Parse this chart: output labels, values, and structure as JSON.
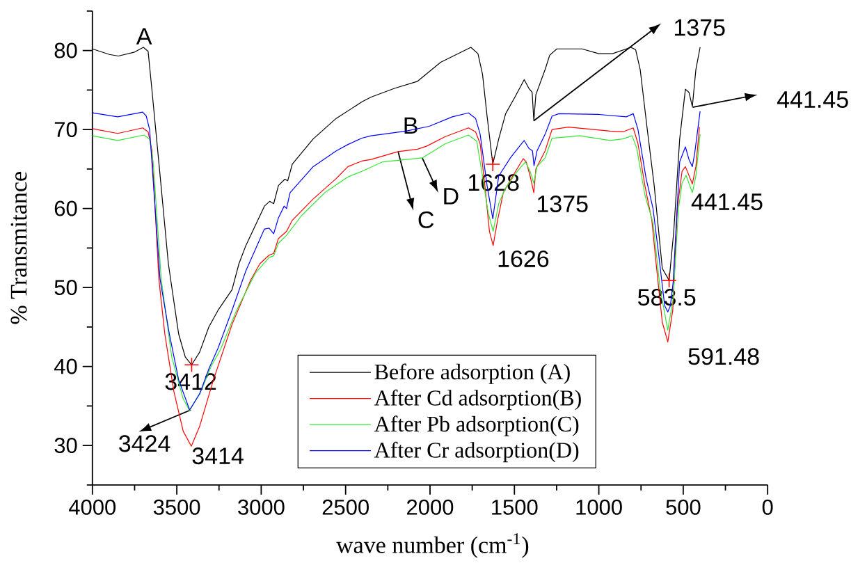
{
  "chart_data": {
    "type": "line",
    "xlabel": "wave number (cm$^{-1}$)",
    "ylabel": "% Transmitance",
    "xlim": [
      4000,
      0
    ],
    "ylim": [
      25,
      85
    ],
    "xticks": [
      4000,
      {
        "value": 3750,
        "label": null
      },
      3500,
      {
        "value": 3250,
        "label": null
      },
      3000,
      {
        "value": 2750,
        "label": null
      },
      2500,
      {
        "value": 2250,
        "label": null
      },
      2000,
      {
        "value": 1750,
        "label": null
      },
      1500,
      {
        "value": 1250,
        "label": null
      },
      1000,
      {
        "value": 750,
        "label": null
      },
      500,
      {
        "value": 250,
        "label": null
      },
      0
    ],
    "yticks": [
      {
        "value": 25,
        "label": null
      },
      30,
      {
        "value": 35,
        "label": null
      },
      40,
      {
        "value": 45,
        "label": null
      },
      50,
      {
        "value": 55,
        "label": null
      },
      60,
      {
        "value": 65,
        "label": null
      },
      70,
      {
        "value": 75,
        "label": null
      },
      80,
      {
        "value": 85,
        "label": null
      }
    ],
    "legend": "bottom",
    "marker": "none",
    "line_style": "solid",
    "series": [
      {
        "name": "Before adsorption (A)",
        "color": "#000000",
        "x": [
          4000,
          3900,
          3846,
          3750,
          3698,
          3670,
          3650,
          3600,
          3550,
          3489,
          3450,
          3412,
          3365,
          3310,
          3256,
          3173,
          3132,
          3091,
          2981,
          2950,
          2926,
          2898,
          2860,
          2843,
          2816,
          2692,
          2556,
          2403,
          2349,
          2211,
          2074,
          1937,
          1758,
          1716,
          1689,
          1662,
          1628,
          1593,
          1552,
          1497,
          1442,
          1414,
          1395,
          1385,
          1373,
          1318,
          1291,
          1249,
          1100,
          1000,
          919,
          810,
          782,
          755,
          713,
          672,
          624,
          583.5,
          556,
          521,
          487,
          466,
          446,
          425,
          400
        ],
        "values": [
          80.2,
          79.5,
          79.3,
          79.8,
          80.4,
          79.9,
          75.6,
          64.4,
          53.0,
          44.1,
          41.2,
          40.2,
          41.8,
          45.0,
          47.1,
          49.7,
          53.0,
          55.3,
          60.3,
          60.9,
          60.6,
          62.9,
          63.7,
          63.5,
          65.6,
          68.8,
          71.4,
          73.5,
          74.1,
          75.2,
          76.1,
          78.5,
          80.4,
          79.6,
          77.0,
          71.7,
          65.6,
          68.8,
          72.0,
          74.1,
          76.3,
          75.2,
          74.7,
          71.1,
          74.4,
          77.6,
          79.4,
          80.2,
          80.2,
          79.6,
          79.6,
          80.4,
          80.1,
          77.6,
          70.0,
          62.9,
          52.4,
          50.9,
          57.1,
          68.8,
          75.1,
          74.7,
          72.9,
          77.6,
          80.4
        ]
      },
      {
        "name": "After Cd adsorption(B)",
        "color": "#ff0000",
        "x": [
          4000,
          3850,
          3702,
          3670,
          3647,
          3606,
          3571,
          3517,
          3462,
          3414,
          3365,
          3283,
          3173,
          3063,
          3008,
          2953,
          2926,
          2898,
          2850,
          2816,
          2692,
          2555,
          2486,
          2404,
          2349,
          2190,
          2074,
          2019,
          1909,
          1772,
          1730,
          1703,
          1675,
          1648,
          1626,
          1600,
          1566,
          1510,
          1448,
          1430,
          1407,
          1385,
          1373,
          1318,
          1277,
          1180,
          933,
          858,
          796,
          768,
          727,
          686,
          659,
          624,
          591.48,
          562,
          535,
          507,
          487,
          446,
          425,
          404
        ],
        "values": [
          70.1,
          69.5,
          70.2,
          69.7,
          67.3,
          51.0,
          44.1,
          36.8,
          31.8,
          29.9,
          32.4,
          38.3,
          45.3,
          50.9,
          53.0,
          54.1,
          54.3,
          56.2,
          57.1,
          58.5,
          61.2,
          63.8,
          65.3,
          66.0,
          66.2,
          67.2,
          67.5,
          67.9,
          69.1,
          70.2,
          69.7,
          68.2,
          62.9,
          57.1,
          55.3,
          58.5,
          62.0,
          64.1,
          66.3,
          65.9,
          64.1,
          62.0,
          65.0,
          67.3,
          70.0,
          70.3,
          69.8,
          69.7,
          70.2,
          68.2,
          62.9,
          58.5,
          52.7,
          45.6,
          43.1,
          47.1,
          60.0,
          64.7,
          65.3,
          63.1,
          65.3,
          70.3
        ]
      },
      {
        "name": "After Pb adsorption(C)",
        "color": "#33e633",
        "x": [
          4000,
          3850,
          3695,
          3661,
          3640,
          3592,
          3530,
          3462,
          3424,
          3352,
          3297,
          3242,
          3146,
          3035,
          2953,
          2926,
          2898,
          2850,
          2761,
          2623,
          2486,
          2404,
          2280,
          2046,
          1909,
          1772,
          1723,
          1689,
          1655,
          1626,
          1593,
          1552,
          1483,
          1435,
          1407,
          1385,
          1366,
          1318,
          1277,
          1112,
          933,
          858,
          803,
          775,
          727,
          679,
          638,
          591.48,
          560,
          528,
          507,
          483,
          446,
          425,
          400
        ],
        "values": [
          69.2,
          68.6,
          69.3,
          68.8,
          65.9,
          51.0,
          41.2,
          35.9,
          34.4,
          37.1,
          40.0,
          42.1,
          47.1,
          51.8,
          53.8,
          54.0,
          55.6,
          56.6,
          59.1,
          62.0,
          64.0,
          64.7,
          65.9,
          66.4,
          68.2,
          69.3,
          68.5,
          64.1,
          59.4,
          57.1,
          60.6,
          62.6,
          64.7,
          65.9,
          64.7,
          63.2,
          65.3,
          66.4,
          68.9,
          69.2,
          68.6,
          68.8,
          69.2,
          67.6,
          61.7,
          58.2,
          50.0,
          44.6,
          48.5,
          60.0,
          63.2,
          64.2,
          62.0,
          64.1,
          69.4
        ]
      },
      {
        "name": "After Cr adsorption(D)",
        "color": "#0000ff",
        "x": [
          4000,
          3850,
          3702,
          3681,
          3661,
          3599,
          3544,
          3489,
          3424,
          3365,
          3310,
          3256,
          3173,
          3091,
          2981,
          2953,
          2926,
          2898,
          2864,
          2850,
          2829,
          2692,
          2555,
          2486,
          2404,
          2349,
          2143,
          2005,
          1868,
          1772,
          1730,
          1703,
          1662,
          1628,
          1593,
          1524,
          1469,
          1442,
          1414,
          1393,
          1384,
          1366,
          1318,
          1277,
          1236,
          1000,
          837,
          796,
          768,
          720,
          679,
          645,
          610,
          591.48,
          576,
          560,
          521,
          487,
          466,
          446,
          432,
          400
        ],
        "values": [
          72.1,
          71.6,
          72.2,
          71.7,
          70.0,
          51.0,
          44.1,
          38.3,
          34.5,
          36.5,
          39.7,
          42.3,
          47.1,
          52.1,
          57.4,
          57.5,
          56.8,
          58.8,
          60.3,
          60.0,
          62.0,
          65.3,
          67.3,
          68.1,
          68.9,
          69.2,
          69.8,
          70.4,
          71.6,
          72.1,
          71.4,
          69.4,
          62.9,
          58.7,
          64.1,
          66.4,
          67.9,
          68.6,
          67.6,
          67.3,
          65.4,
          67.3,
          69.4,
          71.7,
          72.0,
          71.9,
          71.6,
          72.0,
          70.0,
          63.8,
          60.0,
          54.1,
          47.7,
          46.9,
          47.7,
          50.6,
          65.9,
          67.8,
          66.2,
          65.3,
          67.0,
          72.3
        ]
      },
      {
        "type": "scatter",
        "color": "#ff0000",
        "marker": "cross",
        "x": [
          3412,
          1628,
          583.5
        ],
        "values": [
          40.2,
          65.6,
          50.9
        ]
      }
    ],
    "annotations": [
      "A",
      "B",
      {
        "text": "C",
        "x": 2189,
        "y": 67.2
      },
      {
        "text": "D",
        "x": 2046,
        "y": 66.4
      },
      "1628",
      {
        "text": "1375",
        "x": 1385,
        "y": 71.1
      },
      "1375",
      "1626",
      "441.45",
      "441.45",
      "583.5",
      "591.48",
      "3412",
      {
        "text": "3424",
        "x": 3417,
        "y": 34.5
      },
      "3414"
    ]
  }
}
